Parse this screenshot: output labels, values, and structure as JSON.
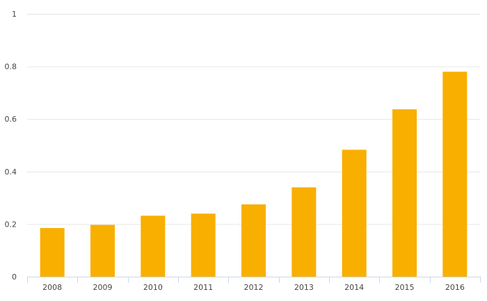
{
  "chart_data": {
    "type": "bar",
    "categories": [
      "2008",
      "2009",
      "2010",
      "2011",
      "2012",
      "2013",
      "2014",
      "2015",
      "2016"
    ],
    "values": [
      0.185,
      0.197,
      0.232,
      0.24,
      0.275,
      0.34,
      0.483,
      0.637,
      0.78
    ],
    "ylim": [
      0,
      1
    ],
    "yticks": [
      "0",
      "0.2",
      "0.4",
      "0.6",
      "0.8",
      "1"
    ],
    "title": "",
    "xlabel": "",
    "ylabel": "",
    "grid": true,
    "legend": "none",
    "colors": {
      "bar": "#F9AF00",
      "grid": "#E6E6E6",
      "axis": "#CCD6EB",
      "text": "#444444"
    }
  }
}
